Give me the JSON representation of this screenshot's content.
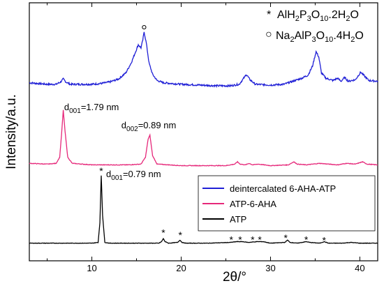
{
  "chart_data": {
    "type": "line",
    "xlabel": "2θ/°",
    "ylabel": "Intensity/a.u.",
    "xlim": [
      3,
      42
    ],
    "x_ticks": [
      10,
      20,
      30,
      40
    ],
    "grid": false,
    "legend_position": "bottom-right",
    "legend": [
      "deintercalated 6-AHA-ATP",
      "ATP-6-AHA",
      "ATP"
    ],
    "colors": {
      "deintercalated": "#1f1fd6",
      "atp6aha": "#e6287a",
      "atp": "#000000"
    },
    "series": [
      {
        "key": "deintercalated",
        "name": "deintercalated 6-AHA-ATP",
        "offset": 2.0,
        "noise": 0.012,
        "points": [
          [
            3,
            0.14
          ],
          [
            5,
            0.12
          ],
          [
            6,
            0.12
          ],
          [
            6.5,
            0.15
          ],
          [
            6.8,
            0.19
          ],
          [
            7.1,
            0.15
          ],
          [
            7.6,
            0.12
          ],
          [
            9,
            0.12
          ],
          [
            10,
            0.12
          ],
          [
            11,
            0.13
          ],
          [
            12,
            0.15
          ],
          [
            13,
            0.19
          ],
          [
            13.8,
            0.27
          ],
          [
            14.4,
            0.4
          ],
          [
            14.9,
            0.55
          ],
          [
            15.2,
            0.64
          ],
          [
            15.5,
            0.6
          ],
          [
            15.7,
            0.7
          ],
          [
            15.85,
            0.81
          ],
          [
            16.1,
            0.66
          ],
          [
            16.4,
            0.4
          ],
          [
            16.8,
            0.25
          ],
          [
            17.3,
            0.17
          ],
          [
            18,
            0.14
          ],
          [
            20,
            0.12
          ],
          [
            22,
            0.11
          ],
          [
            24,
            0.1
          ],
          [
            25.5,
            0.1
          ],
          [
            26.5,
            0.12
          ],
          [
            27,
            0.2
          ],
          [
            27.3,
            0.25
          ],
          [
            27.7,
            0.18
          ],
          [
            28.3,
            0.12
          ],
          [
            30,
            0.11
          ],
          [
            31.5,
            0.12
          ],
          [
            32.5,
            0.16
          ],
          [
            33.5,
            0.2
          ],
          [
            34.2,
            0.24
          ],
          [
            34.7,
            0.36
          ],
          [
            35.1,
            0.55
          ],
          [
            35.4,
            0.48
          ],
          [
            35.7,
            0.27
          ],
          [
            36.2,
            0.2
          ],
          [
            37,
            0.17
          ],
          [
            37.5,
            0.2
          ],
          [
            37.9,
            0.16
          ],
          [
            38.3,
            0.21
          ],
          [
            38.7,
            0.16
          ],
          [
            39.5,
            0.18
          ],
          [
            40.1,
            0.28
          ],
          [
            40.5,
            0.23
          ],
          [
            41,
            0.17
          ],
          [
            42,
            0.16
          ]
        ]
      },
      {
        "key": "atp6aha",
        "name": "ATP-6-AHA",
        "offset": 1.0,
        "noise": 0.004,
        "points": [
          [
            3,
            0.08
          ],
          [
            5,
            0.07
          ],
          [
            6,
            0.08
          ],
          [
            6.4,
            0.16
          ],
          [
            6.6,
            0.45
          ],
          [
            6.8,
            0.78
          ],
          [
            7.0,
            0.5
          ],
          [
            7.3,
            0.16
          ],
          [
            7.8,
            0.08
          ],
          [
            10,
            0.06
          ],
          [
            12,
            0.06
          ],
          [
            14,
            0.06
          ],
          [
            15.5,
            0.07
          ],
          [
            16.0,
            0.16
          ],
          [
            16.3,
            0.4
          ],
          [
            16.5,
            0.45
          ],
          [
            16.8,
            0.18
          ],
          [
            17.3,
            0.07
          ],
          [
            20,
            0.05
          ],
          [
            22,
            0.05
          ],
          [
            25,
            0.05
          ],
          [
            26,
            0.07
          ],
          [
            26.3,
            0.1
          ],
          [
            26.6,
            0.07
          ],
          [
            27.2,
            0.06
          ],
          [
            27.6,
            0.08
          ],
          [
            28,
            0.06
          ],
          [
            28.6,
            0.07
          ],
          [
            30,
            0.05
          ],
          [
            32,
            0.06
          ],
          [
            32.6,
            0.1
          ],
          [
            33,
            0.07
          ],
          [
            34,
            0.06
          ],
          [
            35.5,
            0.08
          ],
          [
            36.5,
            0.07
          ],
          [
            37.5,
            0.06
          ],
          [
            38.5,
            0.08
          ],
          [
            39.5,
            0.07
          ],
          [
            40.3,
            0.1
          ],
          [
            40.8,
            0.07
          ],
          [
            42,
            0.06
          ]
        ]
      },
      {
        "key": "atp",
        "name": "ATP",
        "offset": 0.0,
        "noise": 0.003,
        "points": [
          [
            3,
            0.03
          ],
          [
            8,
            0.03
          ],
          [
            10,
            0.03
          ],
          [
            10.7,
            0.04
          ],
          [
            10.9,
            0.3
          ],
          [
            11.05,
            0.92
          ],
          [
            11.2,
            0.4
          ],
          [
            11.45,
            0.04
          ],
          [
            12,
            0.03
          ],
          [
            17.5,
            0.03
          ],
          [
            17.8,
            0.05
          ],
          [
            18.0,
            0.09
          ],
          [
            18.2,
            0.05
          ],
          [
            18.6,
            0.03
          ],
          [
            19.6,
            0.04
          ],
          [
            19.85,
            0.07
          ],
          [
            20.1,
            0.04
          ],
          [
            20.5,
            0.03
          ],
          [
            22,
            0.03
          ],
          [
            23,
            0.03
          ],
          [
            25.5,
            0.04
          ],
          [
            26.2,
            0.05
          ],
          [
            26.9,
            0.05
          ],
          [
            27.5,
            0.04
          ],
          [
            28.5,
            0.05
          ],
          [
            29.2,
            0.05
          ],
          [
            30,
            0.03
          ],
          [
            31.6,
            0.04
          ],
          [
            31.9,
            0.07
          ],
          [
            32.2,
            0.04
          ],
          [
            33,
            0.03
          ],
          [
            34,
            0.05
          ],
          [
            34.4,
            0.04
          ],
          [
            35.5,
            0.03
          ],
          [
            36,
            0.05
          ],
          [
            36.5,
            0.03
          ],
          [
            38,
            0.03
          ],
          [
            39,
            0.04
          ],
          [
            40,
            0.03
          ],
          [
            42,
            0.03
          ]
        ]
      }
    ],
    "annotations": [
      {
        "sub": "001",
        "value": "=1.79 nm",
        "x": 6.9,
        "y": 1.78,
        "anchor": "start"
      },
      {
        "sub": "002",
        "value": "=0.89 nm",
        "x": 13.3,
        "y": 1.54,
        "anchor": "start"
      },
      {
        "sub": "001",
        "value": "=0.79 nm",
        "x": 11.6,
        "y": 0.9,
        "anchor": "start"
      }
    ],
    "star_markers": [
      [
        11.05,
        0.97
      ],
      [
        18.0,
        0.16
      ],
      [
        19.9,
        0.13
      ],
      [
        25.6,
        0.07
      ],
      [
        26.6,
        0.07
      ],
      [
        28.0,
        0.07
      ],
      [
        28.8,
        0.07
      ],
      [
        31.7,
        0.09
      ],
      [
        34.0,
        0.07
      ],
      [
        36.0,
        0.06
      ]
    ],
    "circle_markers": [
      [
        15.85,
        2.87
      ]
    ],
    "key": {
      "star": {
        "symbol": "*",
        "text": "AlH2P3O10.2H2O"
      },
      "circle": {
        "symbol": "○",
        "text": "Na2AlP3O10.4H2O"
      }
    }
  }
}
